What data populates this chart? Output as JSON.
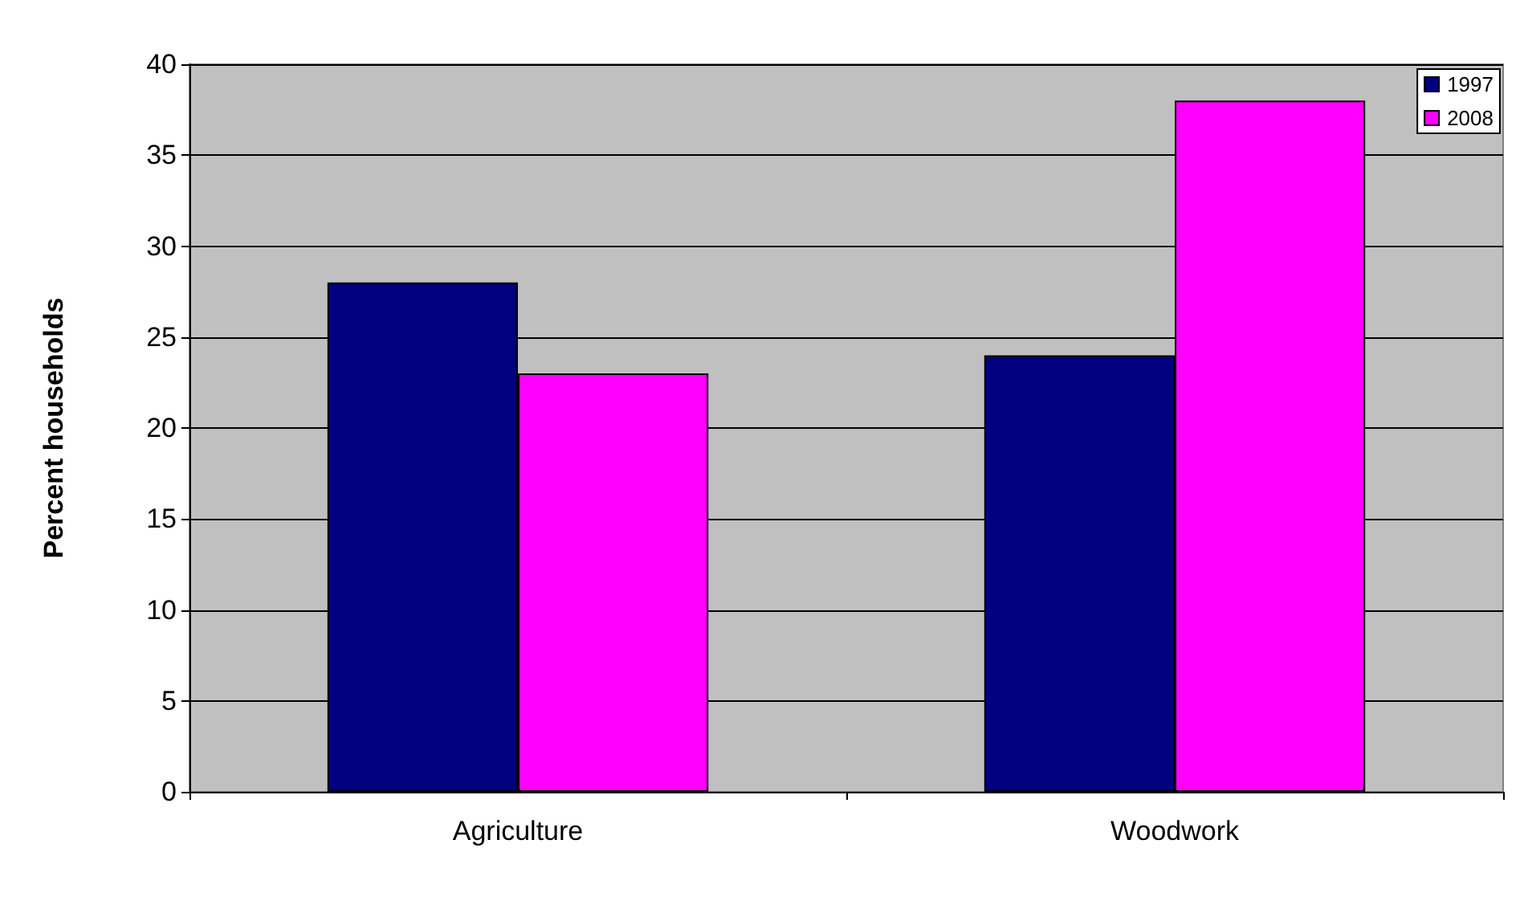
{
  "chart_data": {
    "type": "bar",
    "ylabel": "Percent households",
    "categories": [
      "Agriculture",
      "Woodwork"
    ],
    "series": [
      {
        "name": "1997",
        "color": "#000080",
        "values": [
          28,
          24
        ]
      },
      {
        "name": "2008",
        "color": "#ff00ff",
        "values": [
          23,
          38
        ]
      }
    ],
    "ylim": [
      0,
      40
    ],
    "yticks": [
      0,
      5,
      10,
      15,
      20,
      25,
      30,
      35,
      40
    ],
    "grid": "y",
    "legend": "top right"
  }
}
